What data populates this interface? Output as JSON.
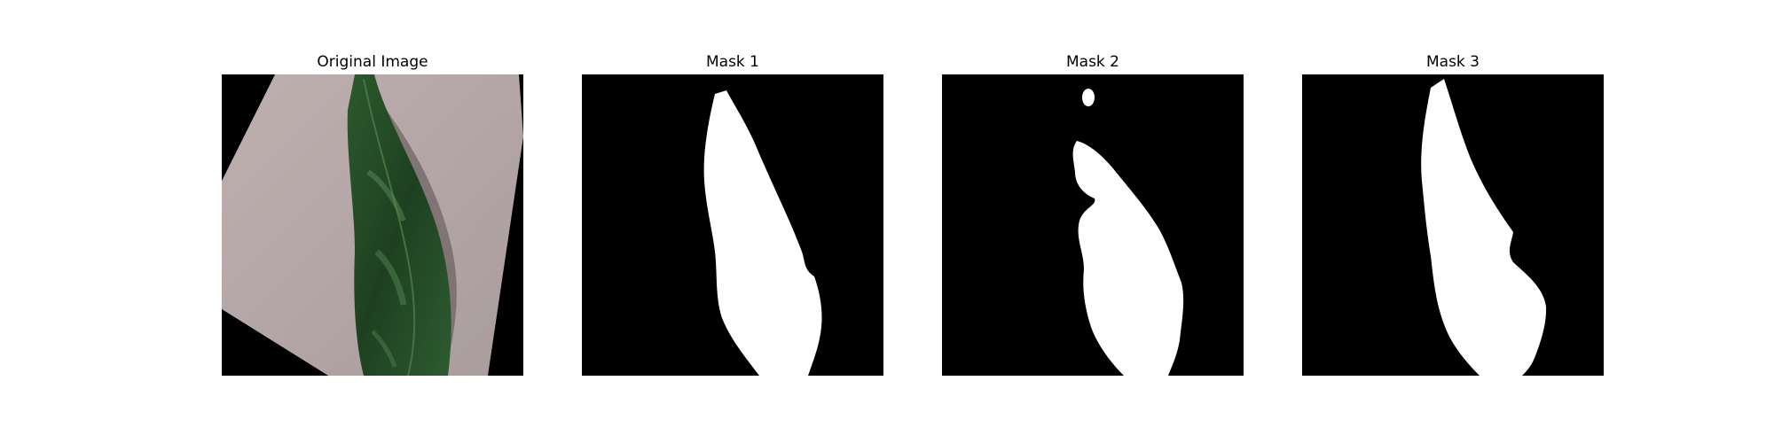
{
  "figure": {
    "panels": [
      {
        "title": "Original Image",
        "content": "leaf photograph on paper, rotated"
      },
      {
        "title": "Mask 1",
        "content": "binary segmentation mask"
      },
      {
        "title": "Mask 2",
        "content": "binary segmentation mask"
      },
      {
        "title": "Mask 3",
        "content": "binary segmentation mask"
      }
    ]
  },
  "colors": {
    "background": "#000000",
    "mask_fill": "#ffffff",
    "paper": "#b7a8a8",
    "leaf_dark": "#1d3d1f",
    "leaf_mid": "#2f5a31",
    "leaf_light": "#4a7a49"
  }
}
